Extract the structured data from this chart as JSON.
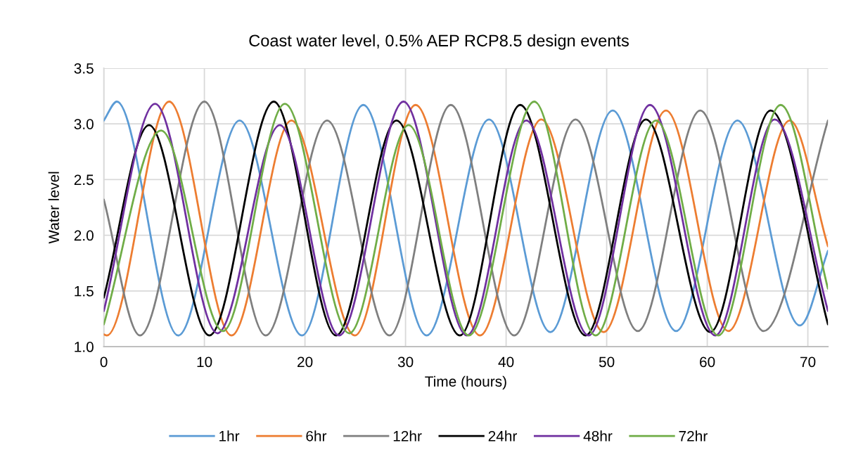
{
  "chart_data": {
    "type": "line",
    "title": "Coast water level, 0.5% AEP RCP8.5 design events",
    "xlabel": "Time (hours)",
    "ylabel": "Water level",
    "xlim": [
      0,
      72
    ],
    "xticks": [
      0,
      10,
      20,
      30,
      40,
      50,
      60,
      70
    ],
    "ylim": [
      1.0,
      3.5
    ],
    "yticks": [
      {
        "value": 1.0,
        "label": "1.0"
      },
      {
        "value": 1.5,
        "label": "1.5"
      },
      {
        "value": 2.0,
        "label": "2.0"
      },
      {
        "value": 2.5,
        "label": "2.5"
      },
      {
        "value": 3.0,
        "label": "3.0"
      },
      {
        "value": 3.5,
        "label": "3.5"
      }
    ],
    "grid": true,
    "legend": "bottom",
    "line_style": "solid",
    "marker": "none",
    "series": [
      {
        "name": "1hr",
        "color": "#5b9bd5",
        "x": [
          0,
          1.3,
          7.4,
          13.5,
          19.7,
          25.8,
          32.1,
          38.3,
          44.4,
          50.6,
          56.9,
          63.0,
          69.2,
          72
        ],
        "values": [
          3.03,
          3.2,
          1.1,
          3.03,
          1.1,
          3.17,
          1.1,
          3.04,
          1.13,
          3.12,
          1.14,
          3.03,
          1.19,
          1.86
        ]
      },
      {
        "name": "6hr",
        "color": "#ed7d31",
        "x": [
          0,
          0.3,
          6.5,
          12.7,
          18.65,
          24.96,
          31.0,
          37.4,
          43.5,
          49.7,
          55.9,
          62.1,
          68.2,
          72
        ],
        "values": [
          1.11,
          1.1,
          3.2,
          1.1,
          3.03,
          1.1,
          3.17,
          1.1,
          3.04,
          1.13,
          3.12,
          1.14,
          3.03,
          1.9
        ]
      },
      {
        "name": "12hr",
        "color": "#7f7f7f",
        "x": [
          0,
          3.6,
          10.0,
          16.1,
          22.2,
          28.4,
          34.5,
          40.8,
          46.9,
          53.1,
          59.3,
          65.6,
          72
        ],
        "values": [
          2.32,
          1.1,
          3.2,
          1.1,
          3.03,
          1.1,
          3.17,
          1.1,
          3.04,
          1.14,
          3.12,
          1.14,
          3.03
        ]
      },
      {
        "name": "24hr",
        "color": "#000000",
        "x": [
          0,
          4.5,
          10.5,
          16.9,
          23.1,
          29.1,
          35.4,
          41.4,
          47.9,
          53.9,
          60.3,
          66.3,
          72
        ],
        "values": [
          1.44,
          2.99,
          1.1,
          3.2,
          1.1,
          3.03,
          1.1,
          3.17,
          1.1,
          3.04,
          1.13,
          3.12,
          1.2
        ]
      },
      {
        "name": "48hr",
        "color": "#7030a0",
        "x": [
          0,
          5.1,
          11.3,
          17.5,
          23.4,
          29.8,
          36.1,
          42.0,
          48.2,
          54.3,
          60.8,
          66.7,
          72
        ],
        "values": [
          1.32,
          3.18,
          1.12,
          2.99,
          1.1,
          3.2,
          1.1,
          3.03,
          1.1,
          3.17,
          1.1,
          3.04,
          1.32
        ]
      },
      {
        "name": "72hr",
        "color": "#70ad47",
        "x": [
          0,
          5.7,
          11.85,
          18.0,
          24.4,
          30.3,
          36.3,
          42.8,
          48.9,
          54.9,
          61.1,
          67.3,
          72
        ],
        "values": [
          1.2,
          2.94,
          1.14,
          3.18,
          1.12,
          2.99,
          1.1,
          3.2,
          1.1,
          3.03,
          1.1,
          3.17,
          1.52
        ]
      }
    ]
  }
}
